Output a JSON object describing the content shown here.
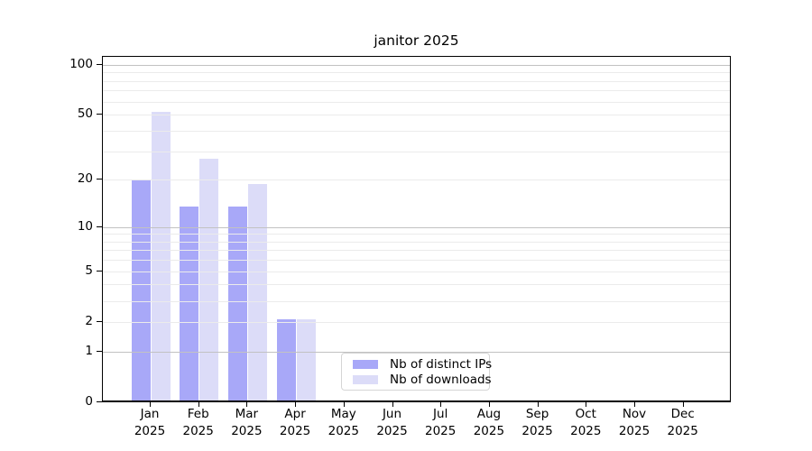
{
  "title": "janitor 2025",
  "legend": {
    "items": [
      {
        "label": "Nb of distinct IPs",
        "color": "#a8a8f8"
      },
      {
        "label": "Nb of downloads",
        "color": "#dcdcf8"
      }
    ]
  },
  "chart_data": {
    "type": "bar",
    "title": "janitor 2025",
    "categories": [
      "Jan",
      "Feb",
      "Mar",
      "Apr",
      "May",
      "Jun",
      "Jul",
      "Aug",
      "Sep",
      "Oct",
      "Nov",
      "Dec"
    ],
    "year": "2025",
    "series": [
      {
        "name": "Nb of distinct IPs",
        "color": "#a8a8f8",
        "values": [
          19,
          13,
          13,
          2,
          0,
          0,
          0,
          0,
          0,
          0,
          0,
          0
        ]
      },
      {
        "name": "Nb of downloads",
        "color": "#dcdcf8",
        "values": [
          50,
          26,
          18,
          2,
          0,
          0,
          0,
          0,
          0,
          0,
          0,
          0
        ]
      }
    ],
    "yscale": "log1p",
    "yticks": [
      0,
      1,
      2,
      5,
      10,
      20,
      50,
      100
    ],
    "gridline_values": [
      1,
      2,
      3,
      4,
      5,
      6,
      7,
      8,
      9,
      10,
      20,
      30,
      40,
      50,
      60,
      70,
      80,
      90,
      100
    ],
    "major_gridline_values": [
      1,
      10,
      100
    ],
    "ylim": [
      0,
      111
    ],
    "grid": true,
    "legend_position": "lower center",
    "xlabel": "",
    "ylabel": ""
  },
  "colors": {
    "bar_dark": "#a8a8f8",
    "bar_light": "#dcdcf8",
    "grid_major": "#c2c2c2",
    "grid_minor": "#ebebeb",
    "axis": "#000000",
    "legend_border": "#d5d5d5"
  }
}
